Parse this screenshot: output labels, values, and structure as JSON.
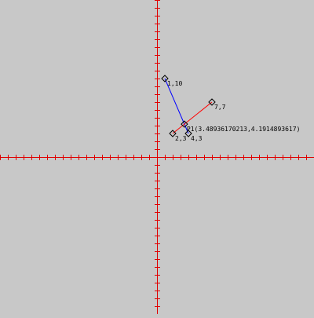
{
  "canvas": {
    "background": "#c8c8c8",
    "axis_color": "#e00000"
  },
  "coordinate_plane": {
    "x_range": [
      -20,
      20
    ],
    "y_range": [
      -20,
      20
    ],
    "tick_spacing": 1
  },
  "segments": [
    {
      "id": "segment-a",
      "color": "#0000ff",
      "start": {
        "x": 1,
        "y": 10,
        "label": "1,10"
      },
      "end": {
        "x": 4,
        "y": 3,
        "label": "4,3"
      }
    },
    {
      "id": "segment-b",
      "color": "#ff0000",
      "start": {
        "x": 2,
        "y": 3,
        "label": "2,3"
      },
      "end": {
        "x": 7,
        "y": 7,
        "label": "7,7"
      }
    }
  ],
  "intersection": {
    "x": 3.48936170213,
    "y": 4.1914893617,
    "label": "P1(3.48936170213,4.1914893617)"
  },
  "chart_data": {
    "type": "scatter",
    "series": [
      {
        "name": "",
        "points": [
          [
            1,
            10
          ],
          [
            4,
            3
          ]
        ]
      },
      {
        "name": "",
        "points": [
          [
            2,
            3
          ],
          [
            7,
            7
          ]
        ]
      }
    ],
    "intersection": [
      3.48936170213,
      4.1914893617
    ],
    "xlim": [
      -20,
      20
    ],
    "ylim": [
      -20,
      20
    ]
  }
}
